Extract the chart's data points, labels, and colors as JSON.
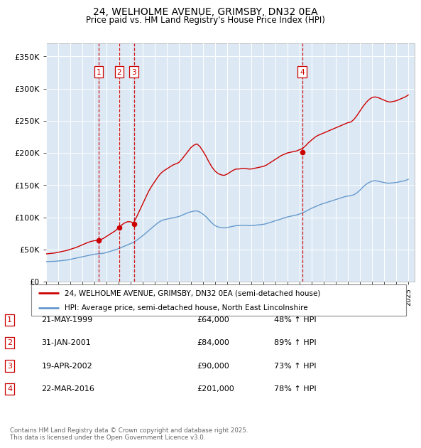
{
  "title": "24, WELHOLME AVENUE, GRIMSBY, DN32 0EA",
  "subtitle": "Price paid vs. HM Land Registry's House Price Index (HPI)",
  "xlim": [
    1995.0,
    2025.5
  ],
  "ylim": [
    0,
    370000
  ],
  "yticks": [
    0,
    50000,
    100000,
    150000,
    200000,
    250000,
    300000,
    350000
  ],
  "ytick_labels": [
    "£0",
    "£50K",
    "£100K",
    "£150K",
    "£200K",
    "£250K",
    "£300K",
    "£350K"
  ],
  "plot_bg_color": "#dce9f5",
  "red_line_color": "#cc0000",
  "blue_line_color": "#6699cc",
  "transaction_line_color": "#cc0000",
  "transactions": [
    {
      "num": 1,
      "date": "21-MAY-1999",
      "year": 1999.38,
      "price": 64000,
      "pct": "48%",
      "dir": "↑"
    },
    {
      "num": 2,
      "date": "31-JAN-2001",
      "year": 2001.08,
      "price": 84000,
      "pct": "89%",
      "dir": "↑"
    },
    {
      "num": 3,
      "date": "19-APR-2002",
      "year": 2002.29,
      "price": 90000,
      "pct": "73%",
      "dir": "↑"
    },
    {
      "num": 4,
      "date": "22-MAR-2016",
      "year": 2016.22,
      "price": 201000,
      "pct": "78%",
      "dir": "↑"
    }
  ],
  "legend_label_red": "24, WELHOLME AVENUE, GRIMSBY, DN32 0EA (semi-detached house)",
  "legend_label_blue": "HPI: Average price, semi-detached house, North East Lincolnshire",
  "footer_line1": "Contains HM Land Registry data © Crown copyright and database right 2025.",
  "footer_line2": "This data is licensed under the Open Government Licence v3.0.",
  "red_data": {
    "years": [
      1995.0,
      1995.25,
      1995.5,
      1995.75,
      1996.0,
      1996.25,
      1996.5,
      1996.75,
      1997.0,
      1997.25,
      1997.5,
      1997.75,
      1998.0,
      1998.25,
      1998.5,
      1998.75,
      1999.0,
      1999.25,
      1999.5,
      1999.75,
      2000.0,
      2000.25,
      2000.5,
      2000.75,
      2001.0,
      2001.25,
      2001.5,
      2001.75,
      2002.0,
      2002.25,
      2002.5,
      2002.75,
      2003.0,
      2003.25,
      2003.5,
      2003.75,
      2004.0,
      2004.25,
      2004.5,
      2004.75,
      2005.0,
      2005.25,
      2005.5,
      2005.75,
      2006.0,
      2006.25,
      2006.5,
      2006.75,
      2007.0,
      2007.25,
      2007.5,
      2007.75,
      2008.0,
      2008.25,
      2008.5,
      2008.75,
      2009.0,
      2009.25,
      2009.5,
      2009.75,
      2010.0,
      2010.25,
      2010.5,
      2010.75,
      2011.0,
      2011.25,
      2011.5,
      2011.75,
      2012.0,
      2012.25,
      2012.5,
      2012.75,
      2013.0,
      2013.25,
      2013.5,
      2013.75,
      2014.0,
      2014.25,
      2014.5,
      2014.75,
      2015.0,
      2015.25,
      2015.5,
      2015.75,
      2016.0,
      2016.25,
      2016.5,
      2016.75,
      2017.0,
      2017.25,
      2017.5,
      2017.75,
      2018.0,
      2018.25,
      2018.5,
      2018.75,
      2019.0,
      2019.25,
      2019.5,
      2019.75,
      2020.0,
      2020.25,
      2020.5,
      2020.75,
      2021.0,
      2021.25,
      2021.5,
      2021.75,
      2022.0,
      2022.25,
      2022.5,
      2022.75,
      2023.0,
      2023.25,
      2023.5,
      2023.75,
      2024.0,
      2024.25,
      2024.5,
      2024.75,
      2025.0
    ],
    "values": [
      43000,
      43500,
      44000,
      44500,
      45500,
      46500,
      47500,
      48500,
      50000,
      51500,
      53000,
      55000,
      57000,
      59000,
      61000,
      62500,
      63500,
      64000,
      65000,
      67000,
      70000,
      73000,
      76000,
      79000,
      83000,
      87500,
      91000,
      93000,
      93000,
      91000,
      100000,
      110000,
      120000,
      130000,
      140000,
      148000,
      155000,
      162000,
      168000,
      172000,
      175000,
      178000,
      181000,
      183000,
      185000,
      190000,
      196000,
      202000,
      208000,
      212000,
      214000,
      210000,
      203000,
      195000,
      186000,
      178000,
      172000,
      168000,
      166000,
      165000,
      167000,
      170000,
      173000,
      175000,
      175000,
      176000,
      176000,
      175000,
      175000,
      176000,
      177000,
      178000,
      179000,
      181000,
      184000,
      187000,
      190000,
      193000,
      196000,
      198000,
      200000,
      201000,
      202000,
      203000,
      205000,
      207000,
      211000,
      216000,
      220000,
      224000,
      227000,
      229000,
      231000,
      233000,
      235000,
      237000,
      239000,
      241000,
      243000,
      245000,
      247000,
      248000,
      252000,
      258000,
      265000,
      272000,
      278000,
      283000,
      286000,
      287000,
      286000,
      284000,
      282000,
      280000,
      279000,
      280000,
      281000,
      283000,
      285000,
      287000,
      290000
    ]
  },
  "blue_data": {
    "years": [
      1995.0,
      1995.25,
      1995.5,
      1995.75,
      1996.0,
      1996.25,
      1996.5,
      1996.75,
      1997.0,
      1997.25,
      1997.5,
      1997.75,
      1998.0,
      1998.25,
      1998.5,
      1998.75,
      1999.0,
      1999.25,
      1999.5,
      1999.75,
      2000.0,
      2000.25,
      2000.5,
      2000.75,
      2001.0,
      2001.25,
      2001.5,
      2001.75,
      2002.0,
      2002.25,
      2002.5,
      2002.75,
      2003.0,
      2003.25,
      2003.5,
      2003.75,
      2004.0,
      2004.25,
      2004.5,
      2004.75,
      2005.0,
      2005.25,
      2005.5,
      2005.75,
      2006.0,
      2006.25,
      2006.5,
      2006.75,
      2007.0,
      2007.25,
      2007.5,
      2007.75,
      2008.0,
      2008.25,
      2008.5,
      2008.75,
      2009.0,
      2009.25,
      2009.5,
      2009.75,
      2010.0,
      2010.25,
      2010.5,
      2010.75,
      2011.0,
      2011.25,
      2011.5,
      2011.75,
      2012.0,
      2012.25,
      2012.5,
      2012.75,
      2013.0,
      2013.25,
      2013.5,
      2013.75,
      2014.0,
      2014.25,
      2014.5,
      2014.75,
      2015.0,
      2015.25,
      2015.5,
      2015.75,
      2016.0,
      2016.25,
      2016.5,
      2016.75,
      2017.0,
      2017.25,
      2017.5,
      2017.75,
      2018.0,
      2018.25,
      2018.5,
      2018.75,
      2019.0,
      2019.25,
      2019.5,
      2019.75,
      2020.0,
      2020.25,
      2020.5,
      2020.75,
      2021.0,
      2021.25,
      2021.5,
      2021.75,
      2022.0,
      2022.25,
      2022.5,
      2022.75,
      2023.0,
      2023.25,
      2023.5,
      2023.75,
      2024.0,
      2024.25,
      2024.5,
      2024.75,
      2025.0
    ],
    "values": [
      31000,
      31200,
      31400,
      31600,
      32000,
      32500,
      33000,
      33500,
      34500,
      35500,
      36500,
      37500,
      38500,
      39500,
      40500,
      41500,
      42500,
      43000,
      43500,
      44000,
      45000,
      46500,
      48000,
      49500,
      51000,
      53000,
      55000,
      57000,
      59000,
      61000,
      64000,
      67500,
      71000,
      75000,
      79000,
      83000,
      87000,
      91000,
      94000,
      96000,
      97000,
      98000,
      99000,
      100000,
      101000,
      103000,
      105000,
      107000,
      108500,
      109500,
      110000,
      108000,
      105000,
      101000,
      96000,
      91000,
      87000,
      85000,
      84000,
      83500,
      84000,
      85000,
      86000,
      87000,
      87000,
      87500,
      87500,
      87000,
      87000,
      87500,
      88000,
      88500,
      89000,
      90000,
      91500,
      93000,
      94500,
      96000,
      97500,
      99000,
      100500,
      101500,
      102500,
      103500,
      105000,
      107000,
      109000,
      111500,
      114000,
      116000,
      118000,
      120000,
      121500,
      123000,
      124500,
      126000,
      127500,
      129000,
      130500,
      132000,
      133000,
      133500,
      135000,
      138000,
      142000,
      147000,
      151000,
      154000,
      156000,
      157000,
      156000,
      155000,
      154000,
      153000,
      153000,
      153500,
      154000,
      155000,
      156000,
      157000,
      159000
    ]
  }
}
